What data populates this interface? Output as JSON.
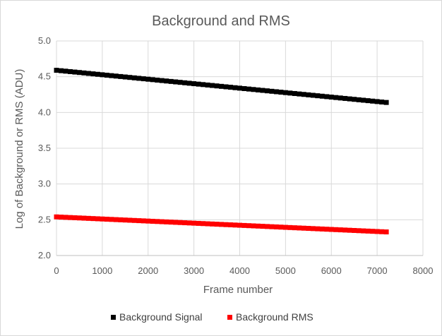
{
  "chart_data": {
    "type": "scatter",
    "title": "Background and RMS",
    "xlabel": "Frame number",
    "ylabel": "Log of Background or RMS (ADU)",
    "xlim": [
      0,
      8000
    ],
    "ylim": [
      2.0,
      5.0
    ],
    "xticks": [
      "0",
      "1000",
      "2000",
      "3000",
      "4000",
      "5000",
      "6000",
      "7000",
      "8000"
    ],
    "yticks": [
      "2.0",
      "2.5",
      "3.0",
      "3.5",
      "4.0",
      "4.5",
      "5.0"
    ],
    "grid": "vertical and horizontal",
    "legend_position": "bottom",
    "series": [
      {
        "name": "Background Signal",
        "color": "#000000",
        "marker": "square",
        "x_start": 0,
        "x_end": 7200,
        "x_step": 100,
        "y_start": 4.59,
        "y_end": 4.14
      },
      {
        "name": "Background RMS",
        "color": "#ff0000",
        "marker": "square",
        "x_start": 0,
        "x_end": 7200,
        "x_step": 100,
        "y_start": 2.54,
        "y_end": 2.33
      }
    ]
  }
}
